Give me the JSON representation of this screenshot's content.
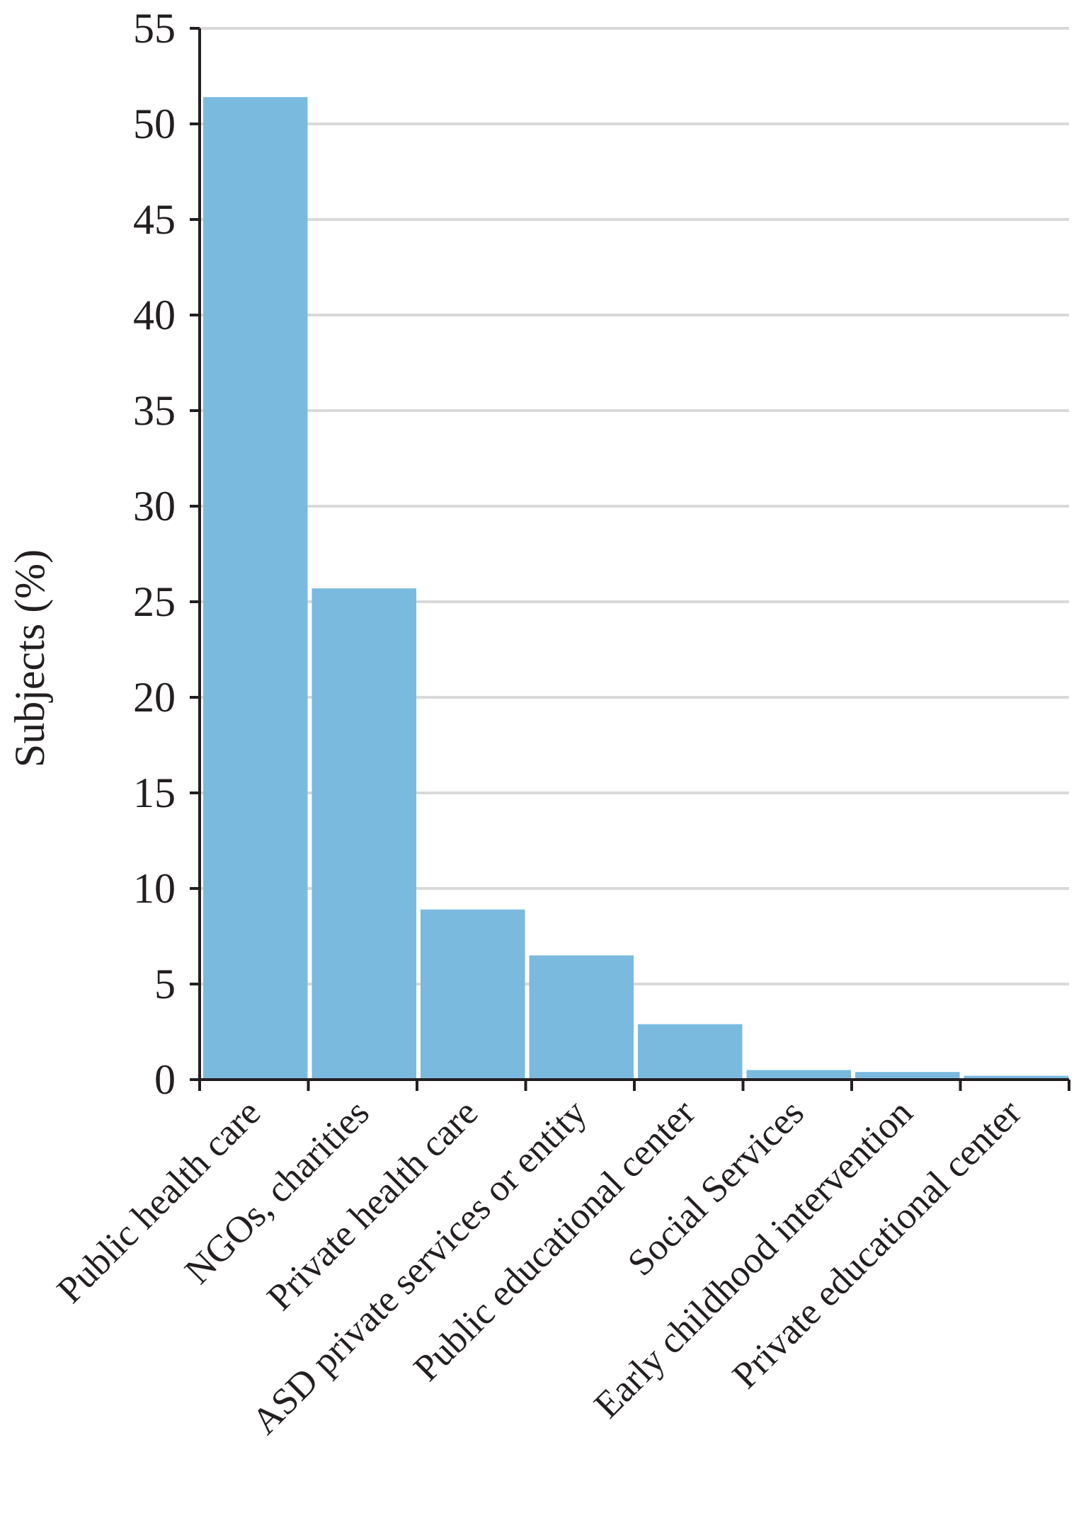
{
  "colors": {
    "bar": "#7abadf",
    "grid": "#d9d9d9",
    "axis": "#231f20",
    "text": "#231f20",
    "background": "#ffffff"
  },
  "chart_data": {
    "type": "bar",
    "title": "",
    "xlabel": "",
    "ylabel": "Subjects (%)",
    "ylim": [
      0,
      55
    ],
    "yticks": [
      0,
      5,
      10,
      15,
      20,
      25,
      30,
      35,
      40,
      45,
      50,
      55
    ],
    "categories": [
      "Public health care",
      "NGOs, charities",
      "Private health care",
      "ASD private services or entity",
      "Public educational center",
      "Social Services",
      "Early childhood intervention",
      "Private educational center"
    ],
    "values": [
      51.4,
      25.7,
      8.9,
      6.5,
      2.9,
      0.5,
      0.4,
      0.2
    ],
    "grid": "horizontal",
    "legend": "none"
  }
}
